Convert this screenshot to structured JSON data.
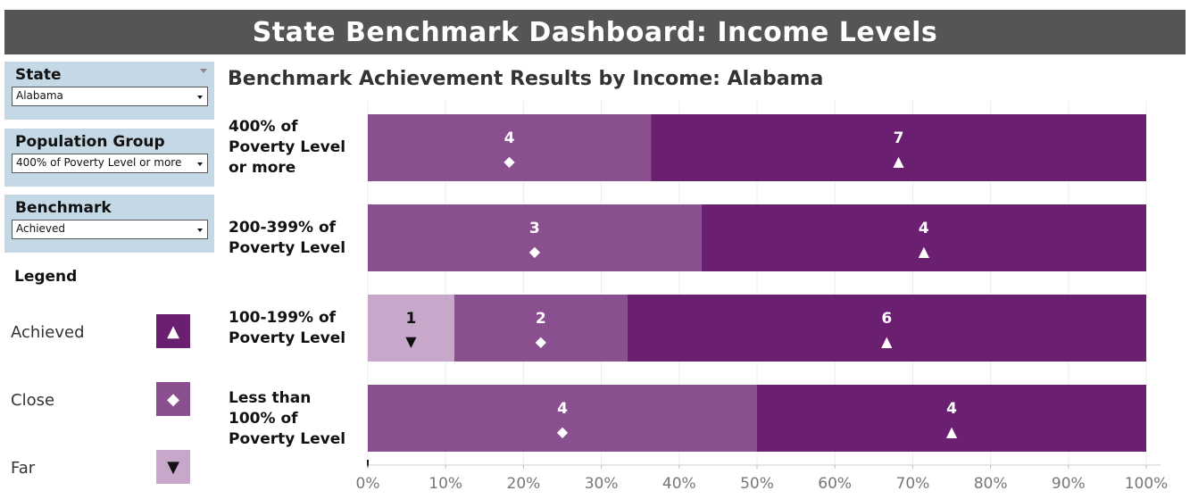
{
  "header": {
    "title": "State Benchmark Dashboard: Income Levels"
  },
  "filters": {
    "state": {
      "label": "State",
      "value": "Alabama"
    },
    "population_group": {
      "label": "Population Group",
      "value": "400% of Poverty Level or more"
    },
    "benchmark": {
      "label": "Benchmark",
      "value": "Achieved"
    }
  },
  "legend": {
    "title": "Legend",
    "items": [
      {
        "label": "Achieved",
        "symbol": "▲",
        "color": "#6a1f70",
        "symbol_color": "#ffffff"
      },
      {
        "label": "Close",
        "symbol": "◆",
        "color": "#8a4f8f",
        "symbol_color": "#ffffff"
      },
      {
        "label": "Far",
        "symbol": "▼",
        "color": "#c7a8cb",
        "symbol_color": "#111111"
      }
    ]
  },
  "chart_data": {
    "type": "bar",
    "orientation": "horizontal",
    "stacked": true,
    "title": "Benchmark Achievement Results by Income: Alabama",
    "categories": [
      "400% of\nPoverty Level\nor more",
      "200-399% of\nPoverty Level",
      "100-199% of\nPoverty Level",
      "Less than\n100% of\nPoverty Level"
    ],
    "series": [
      {
        "name": "Far",
        "symbol": "▼",
        "color": "#c7a8cb",
        "label_color": "#111111",
        "counts": [
          0,
          0,
          1,
          0
        ]
      },
      {
        "name": "Close",
        "symbol": "◆",
        "color": "#8a4f8f",
        "label_color": "#ffffff",
        "counts": [
          4,
          3,
          2,
          4
        ]
      },
      {
        "name": "Achieved",
        "symbol": "▲",
        "color": "#6a1f70",
        "label_color": "#ffffff",
        "counts": [
          7,
          4,
          6,
          4
        ]
      }
    ],
    "xlim": [
      0,
      100
    ],
    "x_ticks": [
      "0%",
      "10%",
      "20%",
      "30%",
      "40%",
      "50%",
      "60%",
      "70%",
      "80%",
      "90%",
      "100%"
    ],
    "x_unit": "percent of benchmarks",
    "grid": true
  }
}
